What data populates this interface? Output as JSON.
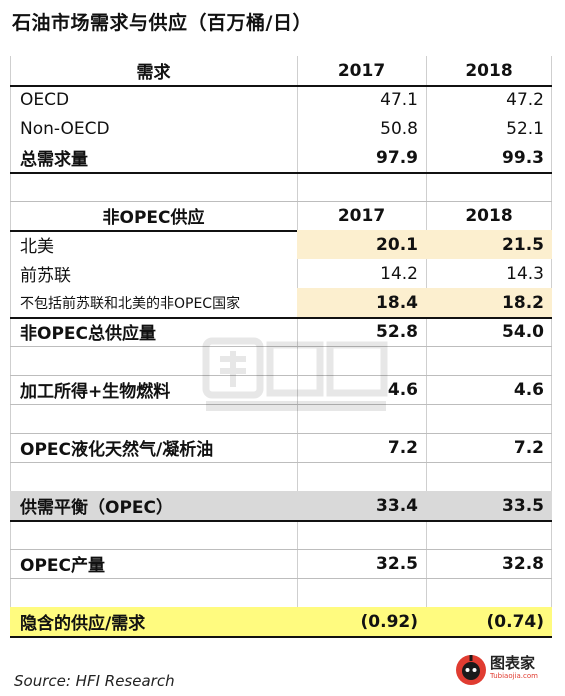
{
  "title": "石油市场需求与供应（百万桶/日）",
  "sections": {
    "demand_header": {
      "label": "需求",
      "y1": "2017",
      "y2": "2018"
    },
    "oecd": {
      "label": "OECD",
      "v1": "47.1",
      "v2": "47.2"
    },
    "non_oecd": {
      "label": "Non-OECD",
      "v1": "50.8",
      "v2": "52.1"
    },
    "total_demand": {
      "label": "总需求量",
      "v1": "97.9",
      "v2": "99.3"
    },
    "supply_header": {
      "label": "非OPEC供应",
      "y1": "2017",
      "y2": "2018"
    },
    "north_america": {
      "label": "北美",
      "v1": "20.1",
      "v2": "21.5"
    },
    "fsu": {
      "label": "前苏联",
      "v1": "14.2",
      "v2": "14.3"
    },
    "other_non_opec": {
      "label": "不包括前苏联和北美的非OPEC国家",
      "v1": "18.4",
      "v2": "18.2"
    },
    "total_non_opec": {
      "label": "非OPEC总供应量",
      "v1": "52.8",
      "v2": "54.0"
    },
    "processing_gains": {
      "label": "加工所得+生物燃料",
      "v1": "4.6",
      "v2": "4.6"
    },
    "opec_ngl": {
      "label": "OPEC液化天然气/凝析油",
      "v1": "7.2",
      "v2": "7.2"
    },
    "balance": {
      "label": "供需平衡（OPEC）",
      "v1": "33.4",
      "v2": "33.5"
    },
    "opec_production": {
      "label": "OPEC产量",
      "v1": "32.5",
      "v2": "32.8"
    },
    "implied": {
      "label": "隐含的供应/需求",
      "v1": "(0.92)",
      "v2": "(0.74)"
    }
  },
  "source": "Source: HFI Research",
  "logo": {
    "name": "图表家",
    "sub": "Tubiaojia.com",
    "watermark": "图表家"
  },
  "colors": {
    "tan": "#fcefcf",
    "gray": "#d9d9d9",
    "yellow": "#fffb7f",
    "logo_red": "#e03c31"
  }
}
